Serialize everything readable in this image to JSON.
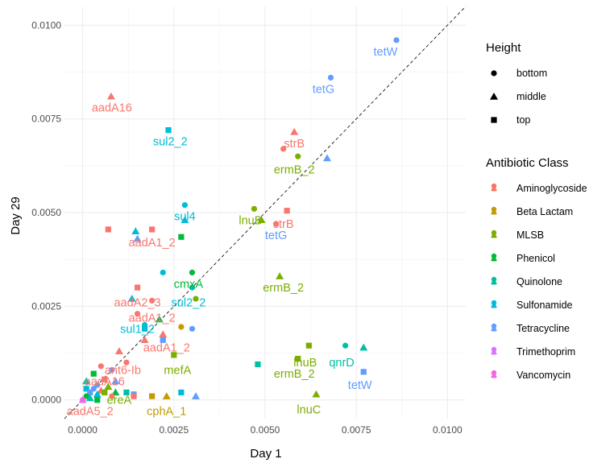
{
  "chart_data": {
    "type": "scatter",
    "xlabel": "Day 1",
    "ylabel": "Day 29",
    "xlim": [
      -0.0005,
      0.0105
    ],
    "ylim": [
      -0.0005,
      0.0105
    ],
    "x_ticks": [
      0,
      0.0025,
      0.005,
      0.0075,
      0.01
    ],
    "y_ticks": [
      0,
      0.0025,
      0.005,
      0.0075,
      0.01
    ],
    "x_tick_labels": [
      "0.0000",
      "0.0025",
      "0.0050",
      "0.0075",
      "0.0100"
    ],
    "y_tick_labels": [
      "0.0000",
      "0.0025",
      "0.0050",
      "0.0075",
      "0.0100"
    ],
    "grid": true,
    "reference_line": {
      "slope": 1,
      "intercept": 0,
      "style": "dashed"
    },
    "legend_placement": "right",
    "legends": [
      {
        "title": "Height",
        "kind": "shape",
        "entries": [
          {
            "label": "bottom",
            "shape": "circle"
          },
          {
            "label": "middle",
            "shape": "triangle"
          },
          {
            "label": "top",
            "shape": "square"
          }
        ]
      },
      {
        "title": "Antibiotic Class",
        "kind": "color",
        "entries": [
          {
            "label": "Aminoglycoside",
            "color": "#F8766D"
          },
          {
            "label": "Beta Lactam",
            "color": "#C49A00"
          },
          {
            "label": "MLSB",
            "color": "#7CAE00"
          },
          {
            "label": "Phenicol",
            "color": "#00BA38"
          },
          {
            "label": "Quinolone",
            "color": "#00BFA4"
          },
          {
            "label": "Sulfonamide",
            "color": "#00BCD8"
          },
          {
            "label": "Tetracycline",
            "color": "#619CFF"
          },
          {
            "label": "Trimethoprim",
            "color": "#DB72FB"
          },
          {
            "label": "Vancomycin",
            "color": "#F564E3"
          }
        ]
      }
    ],
    "points": [
      {
        "x": 0.0086,
        "y": 0.0096,
        "cls": "Tetracycline",
        "h": "bottom"
      },
      {
        "x": 0.0068,
        "y": 0.0086,
        "cls": "Tetracycline",
        "h": "bottom"
      },
      {
        "x": 0.00078,
        "y": 0.0081,
        "cls": "Aminoglycoside",
        "h": "middle"
      },
      {
        "x": 0.00235,
        "y": 0.0072,
        "cls": "Sulfonamide",
        "h": "top"
      },
      {
        "x": 0.0058,
        "y": 0.00715,
        "cls": "Aminoglycoside",
        "h": "middle"
      },
      {
        "x": 0.0055,
        "y": 0.0067,
        "cls": "Aminoglycoside",
        "h": "bottom"
      },
      {
        "x": 0.0059,
        "y": 0.0065,
        "cls": "MLSB",
        "h": "bottom"
      },
      {
        "x": 0.0067,
        "y": 0.00645,
        "cls": "Tetracycline",
        "h": "middle"
      },
      {
        "x": 0.0028,
        "y": 0.0052,
        "cls": "Sulfonamide",
        "h": "bottom"
      },
      {
        "x": 0.0047,
        "y": 0.0051,
        "cls": "MLSB",
        "h": "bottom"
      },
      {
        "x": 0.0056,
        "y": 0.00505,
        "cls": "Aminoglycoside",
        "h": "top"
      },
      {
        "x": 0.0049,
        "y": 0.0048,
        "cls": "MLSB",
        "h": "middle"
      },
      {
        "x": 0.0028,
        "y": 0.0048,
        "cls": "Sulfonamide",
        "h": "middle"
      },
      {
        "x": 0.0053,
        "y": 0.0047,
        "cls": "Aminoglycoside",
        "h": "bottom"
      },
      {
        "x": 0.0007,
        "y": 0.00455,
        "cls": "Aminoglycoside",
        "h": "top"
      },
      {
        "x": 0.0019,
        "y": 0.00455,
        "cls": "Aminoglycoside",
        "h": "top"
      },
      {
        "x": 0.00145,
        "y": 0.0045,
        "cls": "Sulfonamide",
        "h": "middle"
      },
      {
        "x": 0.0027,
        "y": 0.00435,
        "cls": "Phenicol",
        "h": "top"
      },
      {
        "x": 0.0015,
        "y": 0.0043,
        "cls": "Tetracycline",
        "h": "middle"
      },
      {
        "x": 0.003,
        "y": 0.0034,
        "cls": "Phenicol",
        "h": "bottom"
      },
      {
        "x": 0.0022,
        "y": 0.0034,
        "cls": "Sulfonamide",
        "h": "bottom"
      },
      {
        "x": 0.0054,
        "y": 0.0033,
        "cls": "MLSB",
        "h": "middle"
      },
      {
        "x": 0.003,
        "y": 0.003,
        "cls": "Quinolone",
        "h": "bottom"
      },
      {
        "x": 0.0015,
        "y": 0.003,
        "cls": "Aminoglycoside",
        "h": "top"
      },
      {
        "x": 0.0031,
        "y": 0.0027,
        "cls": "MLSB",
        "h": "bottom"
      },
      {
        "x": 0.00135,
        "y": 0.0027,
        "cls": "Sulfonamide",
        "h": "middle"
      },
      {
        "x": 0.0019,
        "y": 0.00265,
        "cls": "Aminoglycoside",
        "h": "bottom"
      },
      {
        "x": 0.0015,
        "y": 0.0023,
        "cls": "Aminoglycoside",
        "h": "bottom"
      },
      {
        "x": 0.0021,
        "y": 0.00215,
        "cls": "Phenicol",
        "h": "middle"
      },
      {
        "x": 0.0017,
        "y": 0.002,
        "cls": "Sulfonamide",
        "h": "bottom"
      },
      {
        "x": 0.0027,
        "y": 0.00195,
        "cls": "Beta Lactam",
        "h": "bottom"
      },
      {
        "x": 0.003,
        "y": 0.0019,
        "cls": "Tetracycline",
        "h": "bottom"
      },
      {
        "x": 0.0017,
        "y": 0.0019,
        "cls": "Sulfonamide",
        "h": "top"
      },
      {
        "x": 0.0022,
        "y": 0.00175,
        "cls": "Aminoglycoside",
        "h": "middle"
      },
      {
        "x": 0.0017,
        "y": 0.0016,
        "cls": "Aminoglycoside",
        "h": "middle"
      },
      {
        "x": 0.0022,
        "y": 0.0016,
        "cls": "Tetracycline",
        "h": "top"
      },
      {
        "x": 0.0062,
        "y": 0.00145,
        "cls": "MLSB",
        "h": "top"
      },
      {
        "x": 0.0072,
        "y": 0.00145,
        "cls": "Quinolone",
        "h": "bottom"
      },
      {
        "x": 0.0077,
        "y": 0.0014,
        "cls": "Quinolone",
        "h": "middle"
      },
      {
        "x": 0.001,
        "y": 0.0013,
        "cls": "Aminoglycoside",
        "h": "middle"
      },
      {
        "x": 0.0025,
        "y": 0.0012,
        "cls": "MLSB",
        "h": "top"
      },
      {
        "x": 0.0059,
        "y": 0.0011,
        "cls": "MLSB",
        "h": "top"
      },
      {
        "x": 0.0012,
        "y": 0.001,
        "cls": "Aminoglycoside",
        "h": "bottom"
      },
      {
        "x": 0.0048,
        "y": 0.00095,
        "cls": "Quinolone",
        "h": "top"
      },
      {
        "x": 0.0005,
        "y": 0.0009,
        "cls": "Aminoglycoside",
        "h": "bottom"
      },
      {
        "x": 0.0008,
        "y": 0.0008,
        "cls": "Tetracycline",
        "h": "bottom"
      },
      {
        "x": 0.0077,
        "y": 0.00075,
        "cls": "Tetracycline",
        "h": "top"
      },
      {
        "x": 0.0003,
        "y": 0.0007,
        "cls": "Phenicol",
        "h": "top"
      },
      {
        "x": 0.0006,
        "y": 0.00055,
        "cls": "Aminoglycoside",
        "h": "top"
      },
      {
        "x": 0.0001,
        "y": 0.0005,
        "cls": "Quinolone",
        "h": "middle"
      },
      {
        "x": 0.0009,
        "y": 0.0005,
        "cls": "Tetracycline",
        "h": "middle"
      },
      {
        "x": 0.0004,
        "y": 0.0004,
        "cls": "Tetracycline",
        "h": "bottom"
      },
      {
        "x": 0.0007,
        "y": 0.00035,
        "cls": "MLSB",
        "h": "middle"
      },
      {
        "x": 0.0001,
        "y": 0.0003,
        "cls": "Sulfonamide",
        "h": "top"
      },
      {
        "x": 0.0003,
        "y": 0.0003,
        "cls": "Tetracycline",
        "h": "bottom"
      },
      {
        "x": 0.0005,
        "y": 0.00025,
        "cls": "Aminoglycoside",
        "h": "middle"
      },
      {
        "x": 0.0002,
        "y": 0.0002,
        "cls": "Tetracycline",
        "h": "top"
      },
      {
        "x": 0.0006,
        "y": 0.0002,
        "cls": "MLSB",
        "h": "top"
      },
      {
        "x": 0.0009,
        "y": 0.0002,
        "cls": "Phenicol",
        "h": "middle"
      },
      {
        "x": 0.0012,
        "y": 0.0002,
        "cls": "Quinolone",
        "h": "top"
      },
      {
        "x": 0.0004,
        "y": 0.00015,
        "cls": "Sulfonamide",
        "h": "middle"
      },
      {
        "x": 0.0014,
        "y": 0.00015,
        "cls": "Tetracycline",
        "h": "top"
      },
      {
        "x": 0.0001,
        "y": 0.0001,
        "cls": "Phenicol",
        "h": "bottom"
      },
      {
        "x": 0.0008,
        "y": 0.0001,
        "cls": "Aminoglycoside",
        "h": "bottom"
      },
      {
        "x": 0.0014,
        "y": 0.0001,
        "cls": "Aminoglycoside",
        "h": "top"
      },
      {
        "x": 0.0002,
        "y": 5e-05,
        "cls": "Quinolone",
        "h": "middle"
      },
      {
        "x": 0.0019,
        "y": 0.0001,
        "cls": "Beta Lactam",
        "h": "top"
      },
      {
        "x": 0.0023,
        "y": 0.0001,
        "cls": "Beta Lactam",
        "h": "middle"
      },
      {
        "x": 0.0027,
        "y": 0.0002,
        "cls": "Sulfonamide",
        "h": "top"
      },
      {
        "x": 0.0031,
        "y": 0.0001,
        "cls": "Tetracycline",
        "h": "middle"
      },
      {
        "x": 0.0064,
        "y": 0.00015,
        "cls": "MLSB",
        "h": "middle"
      },
      {
        "x": 0.0,
        "y": 0.0,
        "cls": "Trimethoprim",
        "h": "middle"
      },
      {
        "x": 0.0,
        "y": 0.0,
        "cls": "Vancomycin",
        "h": "bottom"
      },
      {
        "x": 0.0004,
        "y": 0.0,
        "cls": "Phenicol",
        "h": "top"
      }
    ],
    "labels": [
      {
        "text": "tetW",
        "x": 0.0083,
        "y": 0.0093,
        "cls": "Tetracycline"
      },
      {
        "text": "tetG",
        "x": 0.0066,
        "y": 0.0083,
        "cls": "Tetracycline"
      },
      {
        "text": "aadA16",
        "x": 0.0008,
        "y": 0.0078,
        "cls": "Aminoglycoside"
      },
      {
        "text": "sul2_2",
        "x": 0.0024,
        "y": 0.0069,
        "cls": "Sulfonamide"
      },
      {
        "text": "strB",
        "x": 0.0058,
        "y": 0.00685,
        "cls": "Aminoglycoside"
      },
      {
        "text": "ermB_2",
        "x": 0.0058,
        "y": 0.00615,
        "cls": "MLSB"
      },
      {
        "text": "sul4",
        "x": 0.0028,
        "y": 0.0049,
        "cls": "Sulfonamide"
      },
      {
        "text": "lnuB",
        "x": 0.0046,
        "y": 0.0048,
        "cls": "MLSB"
      },
      {
        "text": "strB",
        "x": 0.0055,
        "y": 0.0047,
        "cls": "Aminoglycoside"
      },
      {
        "text": "tetG",
        "x": 0.0053,
        "y": 0.0044,
        "cls": "Tetracycline"
      },
      {
        "text": "aadA1_2",
        "x": 0.0019,
        "y": 0.0042,
        "cls": "Aminoglycoside"
      },
      {
        "text": "cmxA",
        "x": 0.0029,
        "y": 0.0031,
        "cls": "Phenicol"
      },
      {
        "text": "ermB_2",
        "x": 0.0055,
        "y": 0.003,
        "cls": "MLSB"
      },
      {
        "text": "sul2_2",
        "x": 0.0029,
        "y": 0.0026,
        "cls": "Sulfonamide"
      },
      {
        "text": "aadA2_3",
        "x": 0.0015,
        "y": 0.0026,
        "cls": "Aminoglycoside"
      },
      {
        "text": "aadA1_2",
        "x": 0.0019,
        "y": 0.0022,
        "cls": "Aminoglycoside"
      },
      {
        "text": "sul1_2",
        "x": 0.0015,
        "y": 0.0019,
        "cls": "Sulfonamide"
      },
      {
        "text": "aadA1_2",
        "x": 0.0023,
        "y": 0.0014,
        "cls": "Aminoglycoside"
      },
      {
        "text": "lnuB",
        "x": 0.0061,
        "y": 0.001,
        "cls": "MLSB"
      },
      {
        "text": "qnrD",
        "x": 0.0071,
        "y": 0.001,
        "cls": "Quinolone"
      },
      {
        "text": "ermB_2",
        "x": 0.0058,
        "y": 0.0007,
        "cls": "MLSB"
      },
      {
        "text": "mefA",
        "x": 0.0026,
        "y": 0.0008,
        "cls": "MLSB"
      },
      {
        "text": "ant6-Ib",
        "x": 0.0011,
        "y": 0.0008,
        "cls": "Aminoglycoside"
      },
      {
        "text": "tetW",
        "x": 0.0076,
        "y": 0.0004,
        "cls": "Tetracycline"
      },
      {
        "text": "aadA16",
        "x": 0.0006,
        "y": 0.0005,
        "cls": "Aminoglycoside"
      },
      {
        "text": "ereA",
        "x": 0.001,
        "y": 0.0,
        "cls": "MLSB"
      },
      {
        "text": "lnuC",
        "x": 0.0062,
        "y": -0.00025,
        "cls": "MLSB"
      },
      {
        "text": "cphA_1",
        "x": 0.0023,
        "y": -0.0003,
        "cls": "Beta Lactam"
      },
      {
        "text": "aadA5_2",
        "x": 0.0002,
        "y": -0.0003,
        "cls": "Aminoglycoside"
      }
    ]
  }
}
